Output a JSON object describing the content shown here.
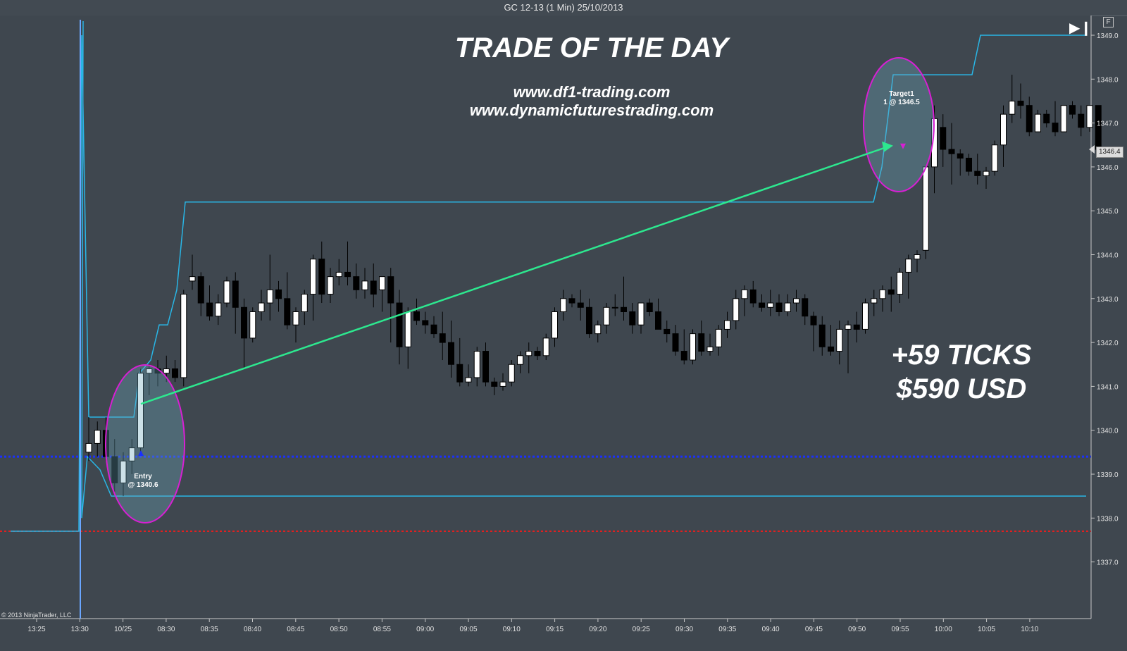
{
  "window": {
    "title": "GC 12-13 (1 Min)  25/10/2013"
  },
  "toolbar": {
    "f_label": "F",
    "goto_end_icon": "skip-to-end-icon"
  },
  "headline": {
    "title": "TRADE OF THE DAY",
    "url1": "www.df1-trading.com",
    "url2": "www.dynamicfuturestrading.com"
  },
  "result": {
    "ticks": "+59 TICKS",
    "usd": "$590 USD"
  },
  "annotations": {
    "entry_line1": "Entry",
    "entry_line2": "@ 1340.6",
    "target_line1": "Target1",
    "target_line2": "1 @ 1346.5"
  },
  "current_price": "1346.4",
  "copyright": "© 2013 NinjaTrader, LLC",
  "colors": {
    "background": "#3f474f",
    "candle_up": "#ffffff",
    "candle_down": "#000000",
    "channel": "#29b6e6",
    "trend_arrow": "#2de88f",
    "highlight_ellipse": "#d81fd4",
    "entry_level": "#1a2fff",
    "stop_level": "#e02020"
  },
  "chart_data": {
    "type": "candlestick",
    "y_ticks": [
      "1349.0",
      "1348.0",
      "1347.0",
      "1346.0",
      "1345.0",
      "1344.0",
      "1343.0",
      "1342.0",
      "1341.0",
      "1340.0",
      "1339.0",
      "1338.0",
      "1337.0"
    ],
    "ylim": [
      1336.0,
      1349.4
    ],
    "x_ticks": [
      "13:25",
      "13:30",
      "10/25",
      "08:30",
      "08:35",
      "08:40",
      "08:45",
      "08:50",
      "08:55",
      "09:00",
      "09:05",
      "09:10",
      "09:15",
      "09:20",
      "09:25",
      "09:30",
      "09:35",
      "09:40",
      "09:45",
      "09:50",
      "09:55",
      "10:00",
      "10:05",
      "10:10"
    ],
    "entry_price": 1340.6,
    "target_price": 1346.5,
    "entry_level": 1339.4,
    "stop_level": 1337.7,
    "candles": [
      [
        1339.5,
        1340.3,
        1339.3,
        1339.7
      ],
      [
        1339.7,
        1340.2,
        1339.4,
        1340.0
      ],
      [
        1340.0,
        1340.3,
        1339.3,
        1339.4
      ],
      [
        1339.4,
        1339.8,
        1338.6,
        1338.8
      ],
      [
        1338.8,
        1339.5,
        1338.5,
        1339.3
      ],
      [
        1339.3,
        1339.8,
        1339.0,
        1339.6
      ],
      [
        1339.6,
        1341.4,
        1339.5,
        1341.3
      ],
      [
        1341.3,
        1341.5,
        1340.8,
        1341.4
      ],
      [
        1341.4,
        1341.6,
        1341.0,
        1341.3
      ],
      [
        1341.3,
        1341.7,
        1341.1,
        1341.4
      ],
      [
        1341.4,
        1341.6,
        1341.1,
        1341.2
      ],
      [
        1341.2,
        1343.2,
        1341.0,
        1343.1
      ],
      [
        1343.4,
        1344.0,
        1343.2,
        1343.5
      ],
      [
        1343.5,
        1343.6,
        1342.6,
        1342.9
      ],
      [
        1342.9,
        1343.3,
        1342.5,
        1342.6
      ],
      [
        1342.6,
        1343.1,
        1342.4,
        1342.9
      ],
      [
        1342.9,
        1343.5,
        1342.8,
        1343.4
      ],
      [
        1343.4,
        1343.6,
        1342.2,
        1342.8
      ],
      [
        1342.8,
        1343.0,
        1341.4,
        1342.1
      ],
      [
        1342.1,
        1342.8,
        1342.0,
        1342.7
      ],
      [
        1342.7,
        1343.2,
        1342.5,
        1342.9
      ],
      [
        1342.9,
        1344.0,
        1342.5,
        1343.2
      ],
      [
        1343.2,
        1343.4,
        1342.7,
        1343.0
      ],
      [
        1343.0,
        1343.6,
        1342.3,
        1342.4
      ],
      [
        1342.4,
        1342.8,
        1342.0,
        1342.7
      ],
      [
        1342.7,
        1343.2,
        1342.4,
        1343.1
      ],
      [
        1343.1,
        1344.0,
        1342.5,
        1343.9
      ],
      [
        1343.9,
        1344.3,
        1342.9,
        1343.1
      ],
      [
        1343.1,
        1343.7,
        1342.9,
        1343.5
      ],
      [
        1343.5,
        1343.9,
        1343.3,
        1343.6
      ],
      [
        1343.6,
        1344.3,
        1343.3,
        1343.5
      ],
      [
        1343.5,
        1343.8,
        1343.0,
        1343.2
      ],
      [
        1343.2,
        1343.7,
        1343.0,
        1343.4
      ],
      [
        1343.4,
        1343.8,
        1342.8,
        1343.1
      ],
      [
        1343.2,
        1343.5,
        1342.7,
        1343.5
      ],
      [
        1343.5,
        1343.7,
        1342.0,
        1342.9
      ],
      [
        1342.9,
        1343.2,
        1341.5,
        1341.9
      ],
      [
        1341.9,
        1342.8,
        1341.4,
        1342.7
      ],
      [
        1342.7,
        1343.0,
        1342.4,
        1342.5
      ],
      [
        1342.5,
        1342.7,
        1342.2,
        1342.4
      ],
      [
        1342.4,
        1342.6,
        1342.1,
        1342.2
      ],
      [
        1342.2,
        1342.7,
        1341.6,
        1342.0
      ],
      [
        1342.0,
        1342.5,
        1341.2,
        1341.5
      ],
      [
        1341.5,
        1342.1,
        1341.0,
        1341.1
      ],
      [
        1341.1,
        1341.5,
        1341.0,
        1341.2
      ],
      [
        1341.2,
        1341.9,
        1341.0,
        1341.8
      ],
      [
        1341.8,
        1342.0,
        1341.0,
        1341.1
      ],
      [
        1341.1,
        1341.2,
        1340.8,
        1341.0
      ],
      [
        1341.0,
        1341.3,
        1340.9,
        1341.1
      ],
      [
        1341.1,
        1341.6,
        1341.0,
        1341.5
      ],
      [
        1341.5,
        1341.8,
        1341.3,
        1341.7
      ],
      [
        1341.7,
        1342.0,
        1341.3,
        1341.8
      ],
      [
        1341.8,
        1341.9,
        1341.6,
        1341.7
      ],
      [
        1341.7,
        1342.2,
        1341.6,
        1342.1
      ],
      [
        1342.1,
        1342.8,
        1341.9,
        1342.7
      ],
      [
        1342.7,
        1343.2,
        1342.5,
        1343.0
      ],
      [
        1343.0,
        1343.1,
        1342.8,
        1342.9
      ],
      [
        1342.9,
        1343.2,
        1342.5,
        1342.8
      ],
      [
        1342.8,
        1343.0,
        1342.1,
        1342.2
      ],
      [
        1342.2,
        1342.5,
        1342.0,
        1342.4
      ],
      [
        1342.4,
        1342.9,
        1342.2,
        1342.8
      ],
      [
        1342.8,
        1343.1,
        1342.6,
        1342.8
      ],
      [
        1342.8,
        1343.5,
        1342.5,
        1342.7
      ],
      [
        1342.7,
        1342.9,
        1342.2,
        1342.4
      ],
      [
        1342.4,
        1342.9,
        1342.2,
        1342.9
      ],
      [
        1342.9,
        1343.0,
        1342.6,
        1342.7
      ],
      [
        1342.7,
        1343.0,
        1342.4,
        1342.3
      ],
      [
        1342.3,
        1342.5,
        1342.0,
        1342.2
      ],
      [
        1342.2,
        1342.4,
        1341.7,
        1341.8
      ],
      [
        1341.8,
        1342.3,
        1341.5,
        1341.6
      ],
      [
        1341.6,
        1342.3,
        1341.5,
        1342.2
      ],
      [
        1342.2,
        1342.5,
        1341.7,
        1341.8
      ],
      [
        1341.8,
        1342.2,
        1341.7,
        1341.9
      ],
      [
        1341.9,
        1342.4,
        1341.7,
        1342.3
      ],
      [
        1342.3,
        1342.7,
        1342.1,
        1342.5
      ],
      [
        1342.5,
        1343.2,
        1342.3,
        1343.0
      ],
      [
        1343.0,
        1343.3,
        1342.6,
        1343.2
      ],
      [
        1343.2,
        1343.4,
        1342.8,
        1342.9
      ],
      [
        1342.9,
        1343.1,
        1342.7,
        1342.8
      ],
      [
        1342.8,
        1343.2,
        1342.6,
        1342.9
      ],
      [
        1342.9,
        1343.1,
        1342.6,
        1342.7
      ],
      [
        1342.7,
        1343.1,
        1342.6,
        1342.9
      ],
      [
        1342.9,
        1343.2,
        1342.7,
        1343.0
      ],
      [
        1343.0,
        1343.1,
        1342.4,
        1342.6
      ],
      [
        1342.6,
        1342.7,
        1341.8,
        1342.4
      ],
      [
        1342.4,
        1342.6,
        1341.7,
        1341.9
      ],
      [
        1341.9,
        1342.4,
        1341.7,
        1341.8
      ],
      [
        1341.8,
        1342.5,
        1341.5,
        1342.3
      ],
      [
        1342.3,
        1342.5,
        1341.3,
        1342.4
      ],
      [
        1342.4,
        1342.7,
        1342.0,
        1342.3
      ],
      [
        1342.3,
        1343.0,
        1342.2,
        1342.9
      ],
      [
        1342.9,
        1343.2,
        1342.6,
        1343.0
      ],
      [
        1343.0,
        1343.3,
        1342.7,
        1343.2
      ],
      [
        1343.2,
        1343.5,
        1342.7,
        1343.1
      ],
      [
        1343.1,
        1343.7,
        1342.9,
        1343.6
      ],
      [
        1343.6,
        1344.0,
        1343.0,
        1343.9
      ],
      [
        1343.9,
        1344.1,
        1343.6,
        1344.0
      ],
      [
        1344.1,
        1346.0,
        1343.9,
        1346.0
      ],
      [
        1346.0,
        1347.4,
        1345.4,
        1347.1
      ],
      [
        1346.9,
        1347.2,
        1346.0,
        1346.4
      ],
      [
        1346.4,
        1347.0,
        1345.6,
        1346.3
      ],
      [
        1346.3,
        1346.4,
        1345.8,
        1346.2
      ],
      [
        1346.2,
        1346.3,
        1345.8,
        1345.9
      ],
      [
        1345.9,
        1346.3,
        1345.6,
        1345.8
      ],
      [
        1345.8,
        1346.0,
        1345.5,
        1345.9
      ],
      [
        1345.9,
        1346.6,
        1345.8,
        1346.5
      ],
      [
        1346.5,
        1347.4,
        1346.0,
        1347.2
      ],
      [
        1347.2,
        1348.1,
        1347.0,
        1347.5
      ],
      [
        1347.5,
        1347.9,
        1347.1,
        1347.4
      ],
      [
        1347.4,
        1347.6,
        1346.7,
        1346.8
      ],
      [
        1346.8,
        1347.3,
        1346.8,
        1347.2
      ],
      [
        1347.2,
        1347.3,
        1346.9,
        1347.0
      ],
      [
        1347.0,
        1347.5,
        1346.7,
        1346.8
      ],
      [
        1346.8,
        1347.4,
        1346.8,
        1347.4
      ],
      [
        1347.4,
        1347.5,
        1347.1,
        1347.2
      ],
      [
        1347.2,
        1347.4,
        1346.7,
        1346.9
      ],
      [
        1346.9,
        1347.4,
        1346.8,
        1347.4
      ],
      [
        1347.4,
        1347.4,
        1346.3,
        1346.4
      ]
    ],
    "channel_upper": [
      1338.8,
      1349.0,
      1340.3,
      1340.3,
      1340.3,
      1340.3,
      1340.3,
      1341.3,
      1341.7,
      1342.4,
      1342.4,
      1343.2,
      1345.2,
      1345.2,
      1346.0,
      1348.1,
      1349.0
    ],
    "channel_lower": [
      1337.7,
      1349.0,
      1338.5,
      1338.5,
      1338.5,
      1338.5,
      1338.5
    ]
  }
}
